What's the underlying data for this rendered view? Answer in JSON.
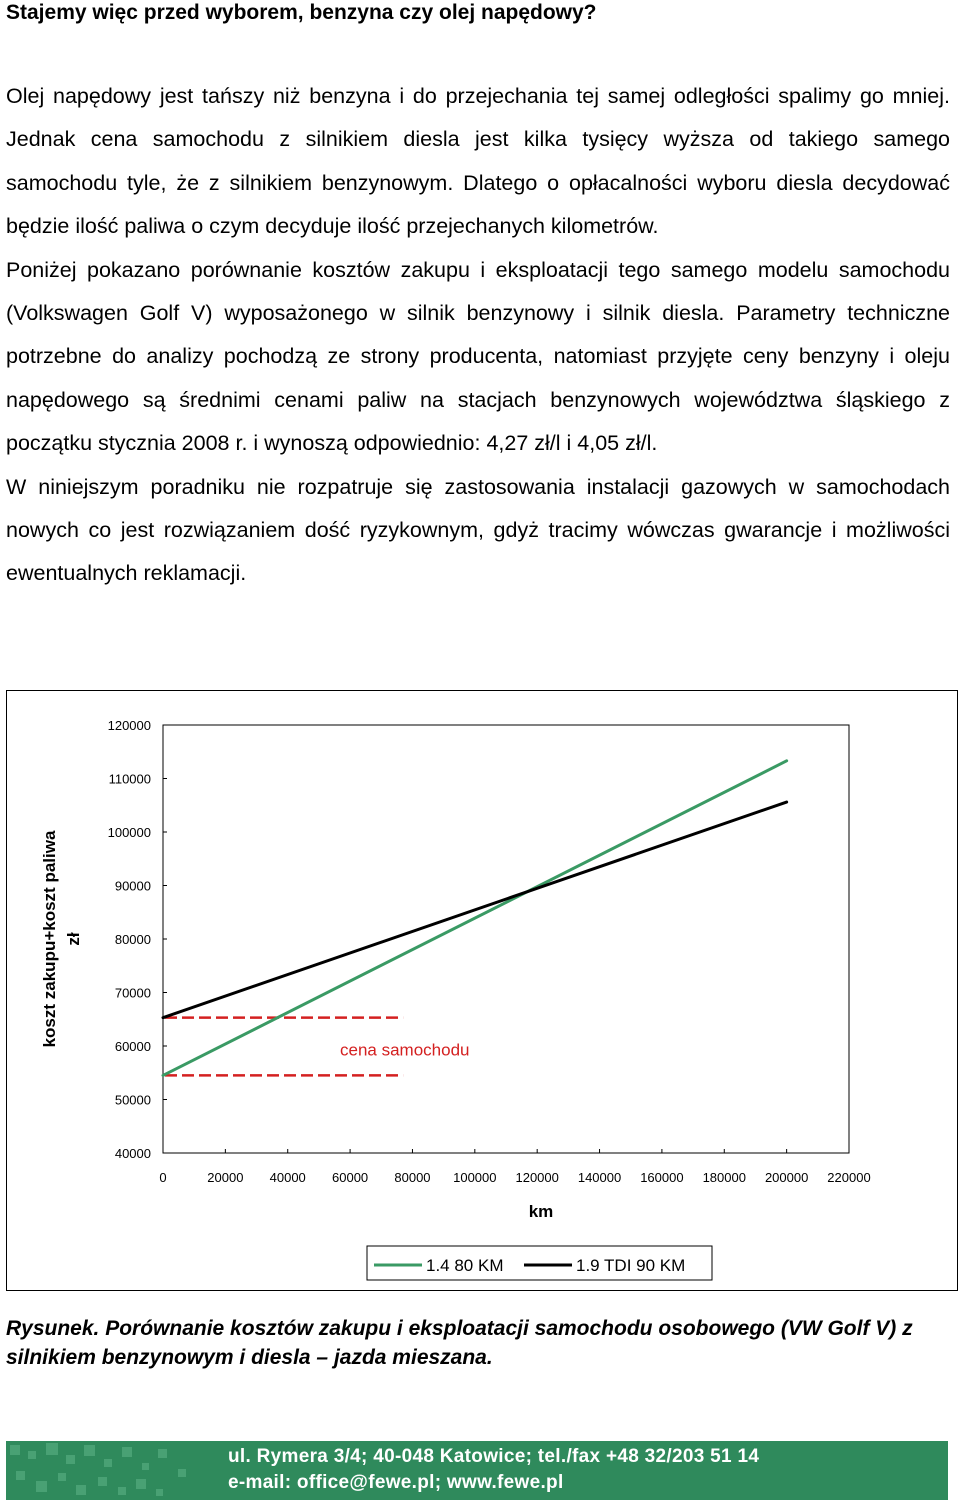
{
  "heading": "Stajemy więc przed wyborem, benzyna czy olej napędowy?",
  "paragraphs": [
    "Olej napędowy jest tańszy niż benzyna i do przejechania tej samej odległości spalimy go mniej. Jednak cena samochodu z silnikiem diesla jest kilka tysięcy wyższa od takiego samego samochodu tyle, że z silnikiem benzynowym. Dlatego o opłacalności wyboru diesla decydować będzie ilość paliwa o czym decyduje ilość przejechanych kilometrów.",
    "Poniżej pokazano porównanie kosztów zakupu i eksploatacji tego samego modelu samochodu (Volkswagen Golf V) wyposażonego w silnik benzynowy i silnik diesla. Parametry techniczne potrzebne do analizy pochodzą ze strony producenta, natomiast przyjęte ceny benzyny i oleju napędowego są średnimi cenami paliw na stacjach benzynowych województwa śląskiego z początku stycznia 2008 r. i wynoszą odpowiednio: 4,27 zł/l i 4,05 zł/l.",
    "W niniejszym poradniku nie rozpatruje się zastosowania instalacji gazowych w samochodach nowych co jest rozwiązaniem dość ryzykownym, gdyż tracimy wówczas gwarancje i możliwości ewentualnych reklamacji."
  ],
  "chart_data": {
    "type": "line",
    "xlabel": "km",
    "ylabel": "koszt zakupu+koszt paliwa\nzł",
    "xlim": [
      0,
      220000
    ],
    "ylim": [
      40000,
      120000
    ],
    "xticks": [
      "0",
      "20000",
      "40000",
      "60000",
      "80000",
      "100000",
      "120000",
      "140000",
      "160000",
      "180000",
      "200000",
      "220000"
    ],
    "yticks": [
      "120000",
      "110000",
      "100000",
      "90000",
      "80000",
      "70000",
      "60000",
      "50000",
      "40000"
    ],
    "grid": false,
    "legend_position": "bottom",
    "series": [
      {
        "name": "1.4 80 KM",
        "color": "#3a9a64",
        "x": [
          0,
          200000
        ],
        "y": [
          54500,
          113300
        ]
      },
      {
        "name": "1.9 TDI 90 KM",
        "color": "#000000",
        "x": [
          0,
          200000
        ],
        "y": [
          65300,
          105600
        ]
      }
    ],
    "annotation": {
      "text": "cena samochodu",
      "color": "#d42020",
      "reference_lines": [
        65300,
        54500
      ],
      "x_end": 77000
    }
  },
  "caption": "Rysunek. Porównanie kosztów zakupu i eksploatacji samochodu osobowego (VW Golf V)  z silnikiem benzynowym i diesla – jazda mieszana.",
  "footer": {
    "line1": "ul. Rymera 3/4; 40-048 Katowice; tel./fax +48 32/203 51 14",
    "line2": "e-mail: office@fewe.pl; www.fewe.pl",
    "background_color": "#2f8a5c"
  }
}
